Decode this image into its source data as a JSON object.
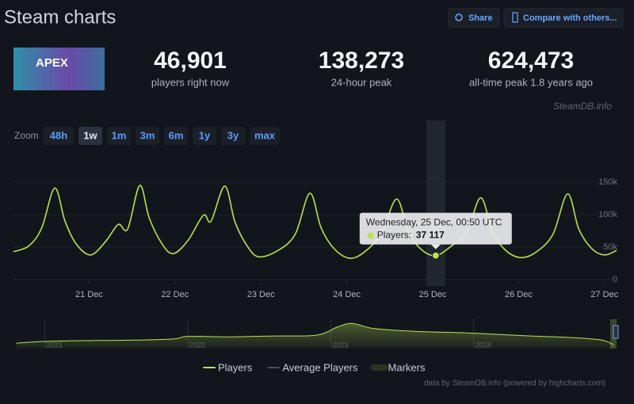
{
  "header": {
    "title": "Steam charts",
    "share": "Share",
    "compare": "Compare with others..."
  },
  "game": {
    "logo": "APEX"
  },
  "stats": [
    {
      "value": "46,901",
      "label": "players right now"
    },
    {
      "value": "138,273",
      "label": "24-hour peak"
    },
    {
      "value": "624,473",
      "label": "all-time peak 1.8 years ago"
    }
  ],
  "watermark": "SteamDB.info",
  "zoom": {
    "label": "Zoom",
    "options": [
      "48h",
      "1w",
      "1m",
      "3m",
      "6m",
      "1y",
      "3y",
      "max"
    ],
    "active": "1w"
  },
  "chart_data": [
    {
      "type": "line",
      "x": [
        20.12,
        20.3,
        20.45,
        20.6,
        20.72,
        20.85,
        21.02,
        21.2,
        21.34,
        21.45,
        21.59,
        21.7,
        21.85,
        21.98,
        22.15,
        22.33,
        22.42,
        22.58,
        22.7,
        22.85,
        22.98,
        23.2,
        23.4,
        23.57,
        23.7,
        23.85,
        24.03,
        24.2,
        24.4,
        24.58,
        24.72,
        24.88,
        25.035,
        25.2,
        25.4,
        25.56,
        25.7,
        25.85,
        26.02,
        26.2,
        26.4,
        26.57,
        26.7,
        26.85,
        27.0,
        27.14
      ],
      "series": [
        {
          "name": "Players",
          "color": "#b7e34f",
          "values": [
            43000,
            52000,
            80000,
            141000,
            90000,
            55000,
            38000,
            60000,
            85000,
            78000,
            145000,
            95000,
            55000,
            40000,
            60000,
            99000,
            90000,
            144000,
            88000,
            50000,
            35000,
            45000,
            70000,
            133000,
            80000,
            48000,
            33000,
            42000,
            70000,
            124000,
            72000,
            45000,
            37117,
            50000,
            75000,
            126000,
            72000,
            45000,
            34000,
            42000,
            70000,
            132000,
            78000,
            48000,
            38000,
            45000
          ]
        }
      ],
      "xlim": [
        20.12,
        27.14
      ],
      "xticks": [
        {
          "value": 21,
          "label": "21 Dec"
        },
        {
          "value": 22,
          "label": "22 Dec"
        },
        {
          "value": 23,
          "label": "23 Dec"
        },
        {
          "value": 24,
          "label": "24 Dec"
        },
        {
          "value": 25,
          "label": "25 Dec"
        },
        {
          "value": 26,
          "label": "26 Dec"
        },
        {
          "value": 27,
          "label": "27 Dec"
        }
      ],
      "ylim": [
        0,
        200000
      ],
      "yticks": [
        0,
        {
          "value": 50000,
          "label": "50k"
        },
        {
          "value": 100000,
          "label": "100k"
        },
        {
          "value": 150000,
          "label": "150k"
        }
      ],
      "grid": true,
      "tooltip": {
        "title": "Wednesday, 25 Dec, 00:50 UTC",
        "label": "Players:",
        "x": 25.035,
        "value": 37117,
        "value_label": "37 117"
      }
    },
    {
      "type": "line",
      "x": [
        2020.8,
        2021.0,
        2021.3,
        2021.6,
        2021.9,
        2022.0,
        2022.3,
        2022.6,
        2022.9,
        2023.05,
        2023.15,
        2023.3,
        2023.6,
        2023.9,
        2024.1,
        2024.4,
        2024.7,
        2024.9,
        2024.98
      ],
      "series": [
        {
          "name": "Players",
          "color": "#b7e34f",
          "values": [
            130000,
            170000,
            190000,
            200000,
            230000,
            290000,
            280000,
            300000,
            320000,
            520000,
            600000,
            480000,
            410000,
            380000,
            350000,
            300000,
            260000,
            200000,
            90000
          ]
        }
      ],
      "xlim": [
        2020.78,
        2025.0
      ],
      "xticks": [
        2021,
        2022,
        2023,
        2024
      ],
      "ylim": [
        0,
        700000
      ]
    }
  ],
  "legend": [
    {
      "name": "Players",
      "color": "#b7e34f"
    },
    {
      "name": "Average Players",
      "color": "#4a4f58"
    },
    {
      "name": "Markers",
      "color": "#2c3322"
    }
  ],
  "credits": "data by SteamDB.info (powered by highcharts.com)"
}
